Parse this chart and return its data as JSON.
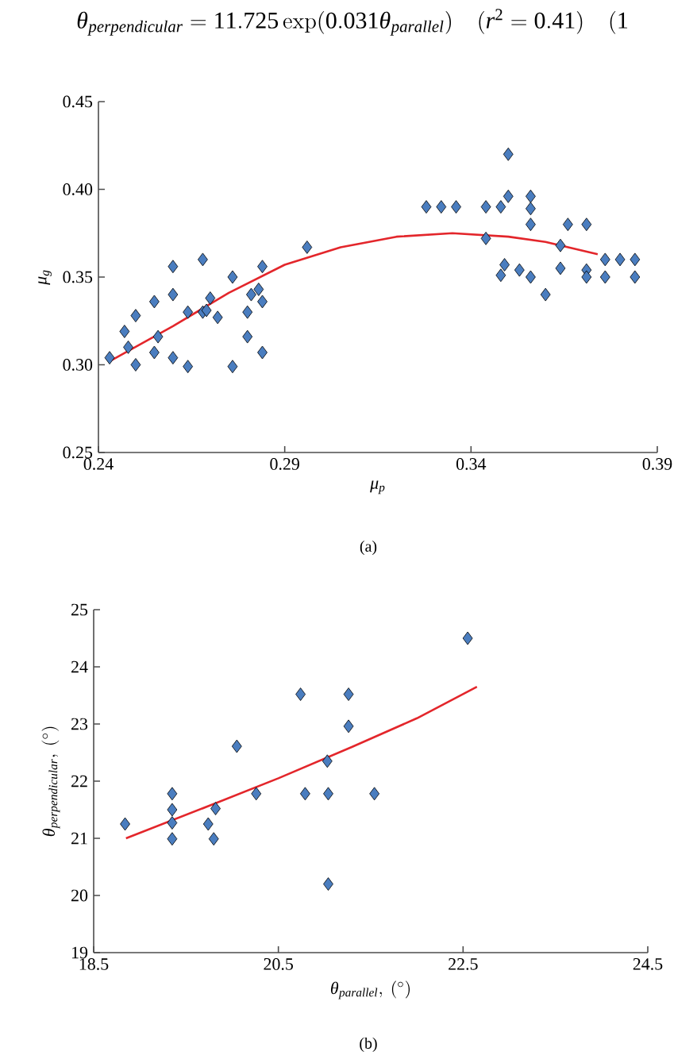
{
  "chart_data": [
    {
      "type": "scatter",
      "xlabel": "μ$_{p}$",
      "ylabel": "μ$_{g}$",
      "annotations": [
        "\\theta_{perpendicular} = 11.725\\exp(0.031\\theta_{parallel})\\quad (r^{2} = 0.41)\\quad (1",
        "(a)"
      ],
      "xlim": [
        0.24,
        0.39
      ],
      "ylim": [
        0.25,
        0.45
      ],
      "xticks": [
        0.24,
        0.29,
        0.34,
        0.39
      ],
      "yticks": [
        0.25,
        {
          "value": 0.3,
          "label": "0.30"
        },
        0.35,
        {
          "value": 0.4,
          "label": "0.40"
        },
        0.45
      ],
      "grid": false,
      "series": [
        {
          "marker": "diamond",
          "color": "#4a7dbf",
          "x": [
            0.243,
            0.247,
            0.25,
            0.25,
            0.248,
            0.255,
            0.256,
            0.255,
            0.26,
            0.26,
            0.26,
            0.264,
            0.264,
            0.268,
            0.268,
            0.27,
            0.272,
            0.269,
            0.276,
            0.276,
            0.28,
            0.28,
            0.281,
            0.284,
            0.284,
            0.284,
            0.283,
            0.296,
            0.328,
            0.332,
            0.336,
            0.344,
            0.348,
            0.35,
            0.35,
            0.356,
            0.356,
            0.356,
            0.344,
            0.348,
            0.349,
            0.353,
            0.356,
            0.36,
            0.364,
            0.364,
            0.366,
            0.371,
            0.371,
            0.371,
            0.376,
            0.376,
            0.38,
            0.384,
            0.384
          ],
          "values": [
            0.304,
            0.319,
            0.328,
            0.3,
            0.31,
            0.336,
            0.316,
            0.307,
            0.356,
            0.34,
            0.304,
            0.299,
            0.33,
            0.36,
            0.33,
            0.338,
            0.327,
            0.331,
            0.35,
            0.299,
            0.33,
            0.316,
            0.34,
            0.356,
            0.336,
            0.307,
            0.343,
            0.367,
            0.39,
            0.39,
            0.39,
            0.39,
            0.39,
            0.42,
            0.396,
            0.396,
            0.389,
            0.38,
            0.372,
            0.351,
            0.357,
            0.354,
            0.35,
            0.34,
            0.368,
            0.355,
            0.38,
            0.38,
            0.354,
            0.35,
            0.36,
            0.35,
            0.36,
            0.36,
            0.35
          ]
        },
        {
          "type": "line",
          "color": "#e3262b",
          "x": [
            0.243,
            0.26,
            0.275,
            0.29,
            0.305,
            0.32,
            0.335,
            0.35,
            0.36,
            0.374
          ],
          "values": [
            0.302,
            0.322,
            0.341,
            0.357,
            0.367,
            0.373,
            0.375,
            0.373,
            0.37,
            0.363
          ]
        }
      ]
    },
    {
      "type": "scatter",
      "xlabel": "\\theta_{parallel},\\ (^{\\circ})",
      "ylabel": "\\theta_{perpendicular},\\ (^{\\circ})",
      "annotations": [
        "(b)"
      ],
      "xlim": [
        18.5,
        24.5
      ],
      "ylim": [
        19,
        25
      ],
      "xticks": [
        18.5,
        20.5,
        22.5,
        24.5
      ],
      "yticks": [
        19,
        20,
        21,
        22,
        23,
        24,
        25
      ],
      "grid": false,
      "series": [
        {
          "marker": "diamond",
          "color": "#4a7dbf",
          "x": [
            18.84,
            19.35,
            19.35,
            19.35,
            19.35,
            19.74,
            19.82,
            19.8,
            20.05,
            20.26,
            20.74,
            20.79,
            21.03,
            21.04,
            21.04,
            21.26,
            21.26,
            21.54,
            22.55
          ],
          "values": [
            21.25,
            21.78,
            21.5,
            21.27,
            20.99,
            21.25,
            21.52,
            20.99,
            22.61,
            21.78,
            23.52,
            21.78,
            22.35,
            21.78,
            20.2,
            23.52,
            22.96,
            21.78,
            24.5
          ]
        },
        {
          "type": "line",
          "color": "#e3262b",
          "x": [
            18.85,
            19.8,
            20.5,
            21.3,
            22.0,
            22.65
          ],
          "values": [
            21.0,
            21.6,
            22.05,
            22.6,
            23.1,
            23.65
          ]
        }
      ]
    }
  ]
}
